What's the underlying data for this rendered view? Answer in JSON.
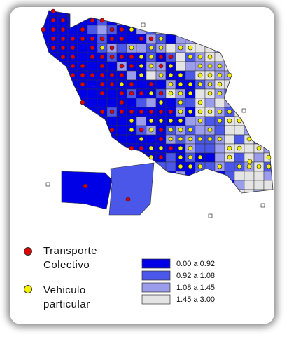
{
  "legend": {
    "points": [
      {
        "label": "Transporte Colectivo",
        "color": "#e00000"
      },
      {
        "label": "Vehiculo particular",
        "color": "#f5f000"
      }
    ],
    "ranges": [
      {
        "label": "0.00 a 0.92",
        "color": "#0000e6"
      },
      {
        "label": "0.92 a 1.08",
        "color": "#4a57e8"
      },
      {
        "label": "1.08 a 1.45",
        "color": "#9c9cec"
      },
      {
        "label": "1.45 a 3.00",
        "color": "#e4e4e4"
      }
    ]
  }
}
